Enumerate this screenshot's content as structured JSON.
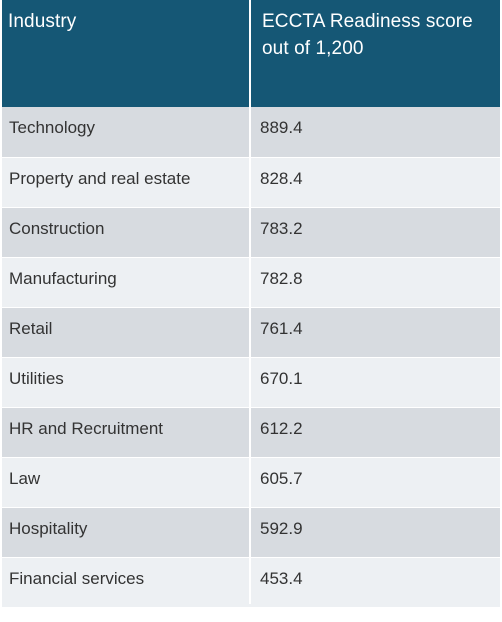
{
  "table": {
    "columns": [
      "Industry",
      "ECCTA Readiness score out of 1,200"
    ],
    "header_line1": "ECCTA Readiness score",
    "header_line2": "out of 1,200",
    "rows": [
      {
        "industry": "Technology",
        "score": "889.4"
      },
      {
        "industry": "Property and real estate",
        "score": "828.4"
      },
      {
        "industry": "Construction",
        "score": "783.2"
      },
      {
        "industry": "Manufacturing",
        "score": "782.8"
      },
      {
        "industry": "Retail",
        "score": "761.4"
      },
      {
        "industry": "Utilities",
        "score": "670.1"
      },
      {
        "industry": "HR and Recruitment",
        "score": "612.2"
      },
      {
        "industry": "Law",
        "score": "605.7"
      },
      {
        "industry": "Hospitality",
        "score": "592.9"
      },
      {
        "industry": "Financial services",
        "score": "453.4"
      }
    ]
  },
  "colors": {
    "header_bg": "#155775",
    "row_dark": "#d7dbe0",
    "row_light": "#edf0f3",
    "text": "#333333"
  }
}
